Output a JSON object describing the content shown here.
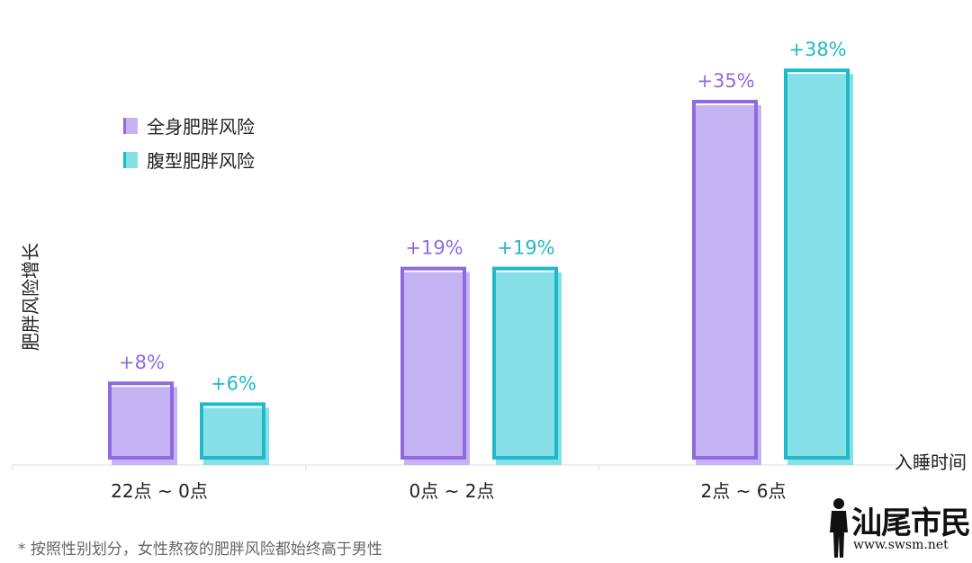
{
  "chart_data": {
    "type": "bar",
    "categories": [
      "22点 ~ 0点",
      "0点 ~ 2点",
      "2点 ~ 6点"
    ],
    "series": [
      {
        "name": "全身肥胖风险",
        "values": [
          8,
          19,
          35
        ],
        "labels": [
          "+8%",
          "+19%",
          "+35%"
        ],
        "color": "#c5b4f3",
        "outline_color": "#8f6ae0",
        "label_color": "#8f6ae0"
      },
      {
        "name": "腹型肥胖风险",
        "values": [
          6,
          19,
          38
        ],
        "labels": [
          "+6%",
          "+19%",
          "+38%"
        ],
        "color": "#86e0e8",
        "outline_color": "#21b9c7",
        "label_color": "#21b9c7"
      }
    ],
    "ylabel": "肥胖风险增长",
    "xlabel": "入睡时间",
    "ylim": [
      0,
      40
    ],
    "grid": false,
    "legend_position": "upper-left"
  },
  "footnote": "* 按照性别划分，女性熬夜的肥胖风险都始终高于男性",
  "watermark": {
    "text": "汕尾市民网",
    "url": "www.swsm.net"
  }
}
